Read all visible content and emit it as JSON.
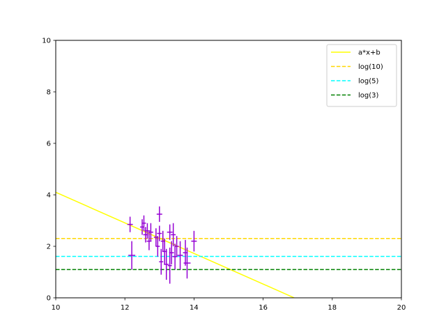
{
  "chart_data": {
    "type": "scatter",
    "title": "",
    "xlabel": "",
    "ylabel": "",
    "xlim": [
      10,
      20
    ],
    "ylim": [
      0,
      10
    ],
    "xticks": [
      10,
      12,
      14,
      16,
      18,
      20
    ],
    "yticks": [
      0,
      2,
      4,
      6,
      8,
      10
    ],
    "grid": false,
    "legend_position": "top-right",
    "series": [
      {
        "name": "a*x+b",
        "kind": "line",
        "color": "#ffff00",
        "dash": "solid",
        "x": [
          10,
          16.9
        ],
        "y": [
          4.1,
          0
        ]
      },
      {
        "name": "log(10)",
        "kind": "hline",
        "color": "#ffd700",
        "dash": "dashed",
        "y": 2.303
      },
      {
        "name": "log(5)",
        "kind": "hline",
        "color": "#00ffff",
        "dash": "dashed",
        "y": 1.609
      },
      {
        "name": "log(3)",
        "kind": "hline",
        "color": "#008000",
        "dash": "dashed",
        "y": 1.099
      }
    ],
    "errorbar_series": {
      "color": "#9400d3",
      "points": [
        {
          "x": 12.15,
          "y": 2.85,
          "xerr": 0.08,
          "yerr": 0.3
        },
        {
          "x": 12.2,
          "y": 1.65,
          "xerr": 0.1,
          "yerr": 0.55
        },
        {
          "x": 12.5,
          "y": 2.75,
          "xerr": 0.06,
          "yerr": 0.3
        },
        {
          "x": 12.55,
          "y": 2.9,
          "xerr": 0.06,
          "yerr": 0.3
        },
        {
          "x": 12.6,
          "y": 2.45,
          "xerr": 0.07,
          "yerr": 0.3
        },
        {
          "x": 12.65,
          "y": 2.6,
          "xerr": 0.08,
          "yerr": 0.3
        },
        {
          "x": 12.7,
          "y": 2.2,
          "xerr": 0.07,
          "yerr": 0.35
        },
        {
          "x": 12.75,
          "y": 2.55,
          "xerr": 0.07,
          "yerr": 0.35
        },
        {
          "x": 12.9,
          "y": 2.35,
          "xerr": 0.06,
          "yerr": 0.35
        },
        {
          "x": 12.95,
          "y": 2.0,
          "xerr": 0.06,
          "yerr": 0.4
        },
        {
          "x": 13.0,
          "y": 3.25,
          "xerr": 0.08,
          "yerr": 0.3
        },
        {
          "x": 13.0,
          "y": 2.5,
          "xerr": 0.07,
          "yerr": 0.3
        },
        {
          "x": 13.05,
          "y": 1.4,
          "xerr": 0.06,
          "yerr": 0.5
        },
        {
          "x": 13.1,
          "y": 2.2,
          "xerr": 0.06,
          "yerr": 0.4
        },
        {
          "x": 13.15,
          "y": 1.8,
          "xerr": 0.07,
          "yerr": 0.5
        },
        {
          "x": 13.2,
          "y": 1.3,
          "xerr": 0.07,
          "yerr": 0.6
        },
        {
          "x": 13.3,
          "y": 1.25,
          "xerr": 0.06,
          "yerr": 0.7
        },
        {
          "x": 13.3,
          "y": 2.55,
          "xerr": 0.08,
          "yerr": 0.3
        },
        {
          "x": 13.35,
          "y": 1.75,
          "xerr": 0.07,
          "yerr": 0.45
        },
        {
          "x": 13.4,
          "y": 2.45,
          "xerr": 0.07,
          "yerr": 0.45
        },
        {
          "x": 13.45,
          "y": 1.6,
          "xerr": 0.07,
          "yerr": 0.5
        },
        {
          "x": 13.5,
          "y": 2.0,
          "xerr": 0.06,
          "yerr": 0.4
        },
        {
          "x": 13.6,
          "y": 1.65,
          "xerr": 0.08,
          "yerr": 0.55
        },
        {
          "x": 13.75,
          "y": 1.75,
          "xerr": 0.07,
          "yerr": 0.5
        },
        {
          "x": 13.8,
          "y": 1.35,
          "xerr": 0.1,
          "yerr": 0.6
        },
        {
          "x": 14.0,
          "y": 2.2,
          "xerr": 0.08,
          "yerr": 0.4
        }
      ]
    }
  }
}
